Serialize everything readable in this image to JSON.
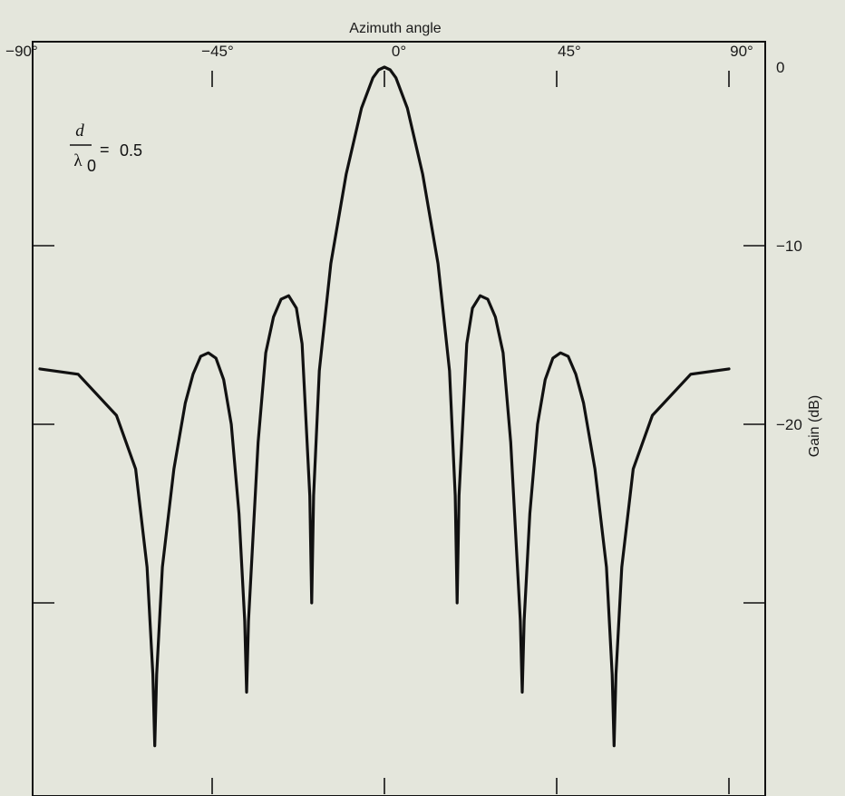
{
  "chart_data": {
    "type": "line",
    "xlabel": "Azimuth angle",
    "ylabel": "Gain (dB)",
    "xlim": [
      -90,
      90
    ],
    "ylim": [
      -40,
      0
    ],
    "x_ticks": [
      {
        "value": -90,
        "label": "−90°"
      },
      {
        "value": -45,
        "label": "−45°"
      },
      {
        "value": 0,
        "label": "0°"
      },
      {
        "value": 45,
        "label": "45°"
      },
      {
        "value": 90,
        "label": "90°"
      }
    ],
    "y_ticks": [
      {
        "value": 0,
        "label": "0"
      },
      {
        "value": -10,
        "label": "−10"
      },
      {
        "value": -20,
        "label": "−20"
      },
      {
        "value": -30,
        "label": ""
      }
    ],
    "annotation": {
      "numerator": "d",
      "denominator": "λ",
      "denominator_sub": "0",
      "equals": "=",
      "value": "0.5"
    },
    "grid": false,
    "series": [
      {
        "x": [
          -90,
          -80,
          -70,
          -65,
          -62,
          -60.5,
          -60,
          -59.5,
          -58,
          -55,
          -52,
          -50,
          -48,
          -46,
          -44,
          -42,
          -40,
          -38,
          -36.5,
          -36,
          -35.5,
          -33,
          -31,
          -29,
          -27,
          -25,
          -23,
          -21.5,
          -19.5,
          -19,
          -18.5,
          -17,
          -14,
          -10,
          -6,
          -3,
          -1.5,
          0,
          1.5,
          3,
          6,
          10,
          14,
          17,
          18.5,
          19,
          19.5,
          21.5,
          23,
          25,
          27,
          29,
          31,
          33,
          35.5,
          36,
          36.5,
          38,
          40,
          42,
          44,
          46,
          48,
          50,
          52,
          55,
          58,
          59.5,
          60,
          60.5,
          62,
          65,
          70,
          80,
          90
        ],
        "y": [
          -16.9,
          -17.2,
          -19.5,
          -22.5,
          -28,
          -34,
          -38,
          -34,
          -28,
          -22.5,
          -18.8,
          -17.2,
          -16.2,
          -16,
          -16.3,
          -17.5,
          -20,
          -25,
          -31,
          -35,
          -31,
          -21,
          -16,
          -14,
          -13,
          -12.8,
          -13.5,
          -15.5,
          -24,
          -30,
          -24,
          -17,
          -11,
          -6,
          -2.3,
          -0.6,
          -0.15,
          0,
          -0.15,
          -0.6,
          -2.3,
          -6,
          -11,
          -17,
          -24,
          -30,
          -24,
          -15.5,
          -13.5,
          -12.8,
          -13,
          -14,
          -16,
          -21,
          -31,
          -35,
          -31,
          -25,
          -20,
          -17.5,
          -16.3,
          -16,
          -16.2,
          -17.2,
          -18.8,
          -22.5,
          -28,
          -34,
          -38,
          -34,
          -28,
          -22.5,
          -19.5,
          -17.2,
          -16.9
        ]
      }
    ]
  }
}
